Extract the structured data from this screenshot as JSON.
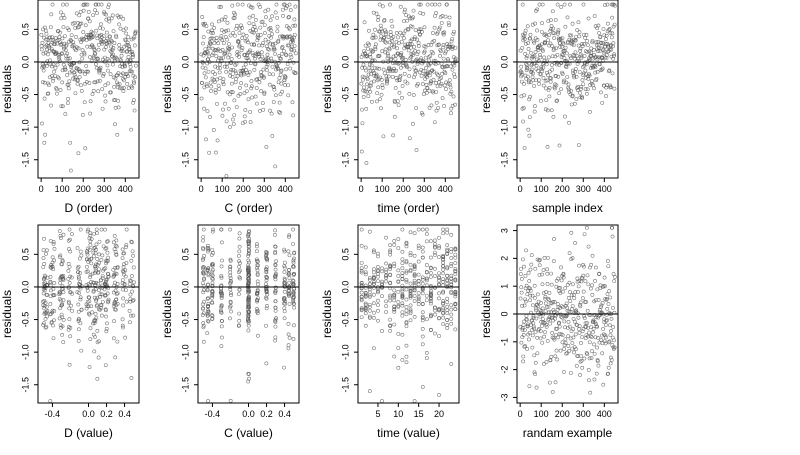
{
  "chart_data": [
    {
      "type": "scatter",
      "xlabel": "D (order)",
      "ylabel": "residuals",
      "x_ticks": [
        0,
        100,
        200,
        300,
        400
      ],
      "y_ticks": [
        -1.5,
        -1.0,
        -0.5,
        0.0,
        0.5
      ],
      "y_tick_labels": [
        "-1.5",
        "-1.0",
        "-0.5",
        "0.0",
        "0.5"
      ],
      "xlim": [
        -15,
        465
      ],
      "ylim": [
        -1.78,
        0.95
      ],
      "reference_line_y": 0,
      "grid": false,
      "n_points": 450,
      "x": "sequential index 1..450",
      "y_trend": "residuals scattered about 0, roughly -1.7 to 0.85; local bump near index 200-300"
    },
    {
      "type": "scatter",
      "xlabel": "C (order)",
      "ylabel": "residuals",
      "x_ticks": [
        0,
        100,
        200,
        300,
        400
      ],
      "y_ticks": [
        -1.5,
        -1.0,
        -0.5,
        0.0,
        0.5
      ],
      "y_tick_labels": [
        "-1.5",
        "-1.0",
        "-0.5",
        "0.0",
        "0.5"
      ],
      "xlim": [
        -15,
        465
      ],
      "ylim": [
        -1.78,
        0.95
      ],
      "reference_line_y": 0,
      "grid": false,
      "n_points": 450,
      "x": "sequential index 1..450",
      "y_trend": "residuals scattered about 0; higher values near the end (400-450)"
    },
    {
      "type": "scatter",
      "xlabel": "time (order)",
      "ylabel": "residuals",
      "x_ticks": [
        0,
        100,
        200,
        300,
        400
      ],
      "y_ticks": [
        -1.5,
        -1.0,
        -0.5,
        0.0,
        0.5
      ],
      "y_tick_labels": [
        "-1.5",
        "-1.0",
        "-0.5",
        "0.0",
        "0.5"
      ],
      "xlim": [
        -15,
        465
      ],
      "ylim": [
        -1.78,
        0.95
      ],
      "reference_line_y": 0,
      "grid": false,
      "n_points": 450,
      "x": "sequential index 1..450",
      "y_trend": "residuals scattered about 0; slightly more negative early values"
    },
    {
      "type": "scatter",
      "xlabel": "sample index",
      "ylabel": "residuals",
      "x_ticks": [
        0,
        100,
        200,
        300,
        400
      ],
      "y_ticks": [
        -1.5,
        -1.0,
        -0.5,
        0.0,
        0.5
      ],
      "y_tick_labels": [
        "-1.5",
        "-1.0",
        "-0.5",
        "0.0",
        "0.5"
      ],
      "xlim": [
        -15,
        465
      ],
      "ylim": [
        -1.78,
        0.95
      ],
      "reference_line_y": 0,
      "grid": false,
      "n_points": 450,
      "x": "sequential index 1..450",
      "y_trend": "residuals scattered about 0; upward trend near the end (400-450)"
    },
    {
      "type": "scatter",
      "xlabel": "D (value)",
      "ylabel": "residuals",
      "x_ticks": [
        -0.4,
        0.0,
        0.2,
        0.4
      ],
      "x_tick_labels": [
        "-0.4",
        "0.0",
        "0.2",
        "0.4"
      ],
      "y_ticks": [
        -1.5,
        -1.0,
        -0.5,
        0.0,
        0.5
      ],
      "y_tick_labels": [
        "-1.5",
        "-1.0",
        "-0.5",
        "0.0",
        "0.5"
      ],
      "xlim": [
        -0.56,
        0.56
      ],
      "ylim": [
        -1.78,
        0.95
      ],
      "reference_line_y": 0,
      "grid": false,
      "n_points": 450,
      "x": "D values in [-0.5, 0.5], some clustered columns",
      "y_trend": "residuals scattered about 0"
    },
    {
      "type": "scatter",
      "xlabel": "C (value)",
      "ylabel": "residuals",
      "x_ticks": [
        -0.4,
        0.0,
        0.2,
        0.4
      ],
      "x_tick_labels": [
        "-0.4",
        "0.0",
        "0.2",
        "0.4"
      ],
      "y_ticks": [
        -1.5,
        -1.0,
        -0.5,
        0.0,
        0.5
      ],
      "y_tick_labels": [
        "-1.5",
        "-1.0",
        "-0.5",
        "0.0",
        "0.5"
      ],
      "xlim": [
        -0.56,
        0.56
      ],
      "ylim": [
        -1.78,
        0.95
      ],
      "reference_line_y": 0,
      "grid": false,
      "n_points": 450,
      "x": "C values in discrete columns between -0.5 and 0.5, dense column at 0.0",
      "y_trend": "residuals scattered about 0"
    },
    {
      "type": "scatter",
      "xlabel": "time (value)",
      "ylabel": "residuals",
      "x_ticks": [
        5,
        10,
        15,
        20
      ],
      "x_tick_labels": [
        "5",
        "10",
        "15",
        "20"
      ],
      "y_ticks": [
        -1.5,
        -1.0,
        -0.5,
        0.0,
        0.5
      ],
      "y_tick_labels": [
        "-1.5",
        "-1.0",
        "-0.5",
        "0.0",
        "0.5"
      ],
      "xlim": [
        0.1,
        24.9
      ],
      "ylim": [
        -1.78,
        0.95
      ],
      "reference_line_y": 0,
      "grid": false,
      "n_points": 450,
      "x": "time values 1..24 (discrete columns)",
      "y_trend": "residuals scattered about 0"
    },
    {
      "type": "scatter",
      "xlabel": "randam example",
      "ylabel": "residuals",
      "x_ticks": [
        0,
        100,
        200,
        300,
        400
      ],
      "y_ticks": [
        -3,
        -2,
        -1,
        0,
        1,
        2,
        3
      ],
      "y_tick_labels": [
        "-3",
        "-2",
        "-1",
        "0",
        "1",
        "2",
        "3"
      ],
      "xlim": [
        -15,
        465
      ],
      "ylim": [
        -3.2,
        3.2
      ],
      "reference_line_y": 0,
      "grid": false,
      "n_points": 450,
      "x": "sequential index 1..450",
      "y_trend": "random normal residuals, range about -3 to 3"
    }
  ]
}
